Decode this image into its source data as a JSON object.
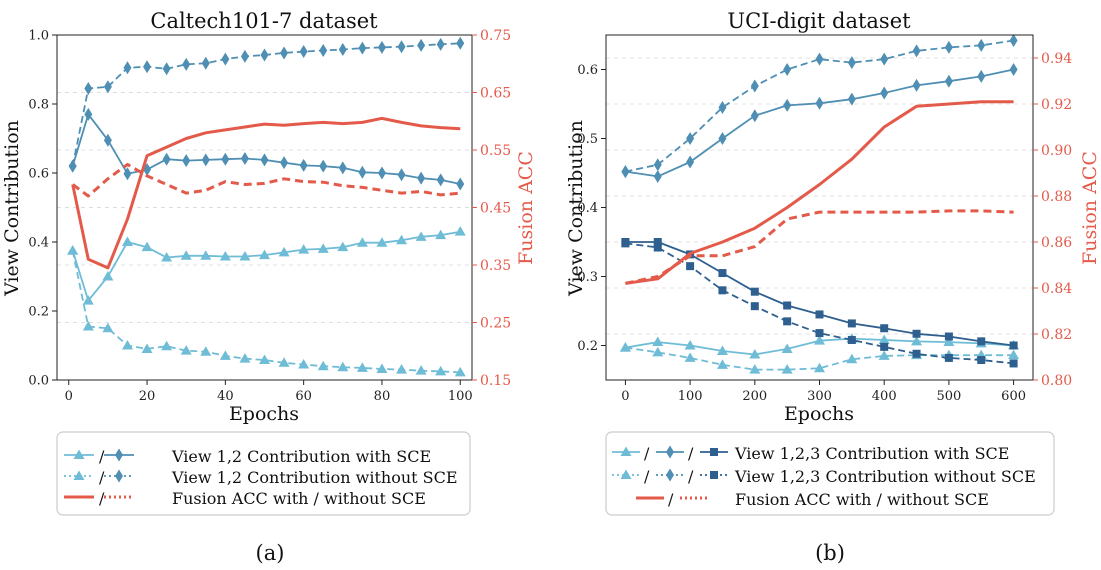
{
  "colors": {
    "light": "#6fbcd6",
    "mid": "#4f8fb3",
    "dark": "#2e5f8f",
    "red": "#e45a4a"
  },
  "chart_data": [
    {
      "type": "line",
      "title": "Caltech101-7 dataset",
      "xlabel": "Epochs",
      "ylabel": "View Contribution",
      "y2label": "Fusion ACC",
      "xlim": [
        -3,
        103
      ],
      "ylim": [
        0,
        1.0
      ],
      "y2lim": [
        0.15,
        0.75
      ],
      "xticks": [
        0,
        20,
        40,
        60,
        80,
        100
      ],
      "yticks": [
        0.0,
        0.2,
        0.4,
        0.6,
        0.8,
        1.0
      ],
      "y2ticks": [
        0.15,
        0.25,
        0.35,
        0.45,
        0.55,
        0.65,
        0.75
      ],
      "xtick_labels": [
        "0",
        "20",
        "40",
        "60",
        "80",
        "100"
      ],
      "ytick_labels": [
        "0.0",
        "0.2",
        "0.4",
        "0.6",
        "0.8",
        "1.0"
      ],
      "y2tick_labels": [
        "0.15",
        "0.25",
        "0.35",
        "0.45",
        "0.55",
        "0.65",
        "0.75"
      ],
      "grid": true,
      "x": [
        1,
        5,
        10,
        15,
        20,
        25,
        30,
        35,
        40,
        45,
        50,
        55,
        60,
        65,
        70,
        75,
        80,
        85,
        90,
        95,
        100
      ],
      "series": [
        {
          "style": "light-tri-solid",
          "axis": "left",
          "values": [
            0.375,
            0.23,
            0.3,
            0.4,
            0.385,
            0.355,
            0.36,
            0.36,
            0.358,
            0.358,
            0.362,
            0.37,
            0.378,
            0.38,
            0.385,
            0.398,
            0.398,
            0.405,
            0.415,
            0.42,
            0.43
          ]
        },
        {
          "style": "light-tri-dash",
          "axis": "left",
          "values": [
            0.375,
            0.155,
            0.15,
            0.1,
            0.09,
            0.098,
            0.085,
            0.082,
            0.07,
            0.062,
            0.058,
            0.05,
            0.045,
            0.04,
            0.037,
            0.035,
            0.032,
            0.03,
            0.027,
            0.025,
            0.022
          ]
        },
        {
          "style": "mid-dia-solid",
          "axis": "left",
          "values": [
            0.62,
            0.77,
            0.695,
            0.598,
            0.61,
            0.64,
            0.636,
            0.638,
            0.64,
            0.642,
            0.638,
            0.63,
            0.622,
            0.62,
            0.615,
            0.602,
            0.6,
            0.595,
            0.585,
            0.58,
            0.568
          ]
        },
        {
          "style": "mid-dia-dash",
          "axis": "left",
          "values": [
            0.62,
            0.845,
            0.85,
            0.905,
            0.908,
            0.902,
            0.915,
            0.918,
            0.93,
            0.938,
            0.942,
            0.948,
            0.952,
            0.955,
            0.958,
            0.962,
            0.964,
            0.966,
            0.97,
            0.973,
            0.976
          ]
        },
        {
          "style": "red-solid",
          "axis": "right",
          "values": [
            0.49,
            0.36,
            0.345,
            0.43,
            0.54,
            0.555,
            0.57,
            0.58,
            0.585,
            0.59,
            0.595,
            0.593,
            0.596,
            0.598,
            0.596,
            0.598,
            0.605,
            0.598,
            0.592,
            0.589,
            0.587
          ]
        },
        {
          "style": "red-dot",
          "axis": "right",
          "values": [
            0.49,
            0.47,
            0.5,
            0.525,
            0.505,
            0.49,
            0.475,
            0.48,
            0.495,
            0.49,
            0.492,
            0.5,
            0.495,
            0.494,
            0.488,
            0.485,
            0.48,
            0.475,
            0.478,
            0.472,
            0.475
          ]
        }
      ],
      "legend": {
        "placement": "bottom",
        "entries": [
          {
            "prefix": "/",
            "label": "View 1,2 Contribution with SCE",
            "style": "tri-dia-solid"
          },
          {
            "prefix": "/",
            "label": "View 1,2 Contribution without SCE",
            "style": "tri-dia-dotted"
          },
          {
            "prefix": "/",
            "label": "Fusion ACC with / without SCE",
            "style": "red-solid-dotted"
          }
        ]
      },
      "caption": "(a)"
    },
    {
      "type": "line",
      "title": "UCI-digit dataset",
      "xlabel": "Epochs",
      "ylabel": "View Contribution",
      "y2label": "Fusion ACC",
      "xlim": [
        -30,
        630
      ],
      "ylim": [
        0.15,
        0.65
      ],
      "y2lim": [
        0.8,
        0.95
      ],
      "xticks": [
        0,
        100,
        200,
        300,
        400,
        500,
        600
      ],
      "yticks": [
        0.2,
        0.3,
        0.4,
        0.5,
        0.6
      ],
      "y2ticks": [
        0.8,
        0.82,
        0.84,
        0.86,
        0.88,
        0.9,
        0.92,
        0.94
      ],
      "xtick_labels": [
        "0",
        "100",
        "200",
        "300",
        "400",
        "500",
        "600"
      ],
      "ytick_labels": [
        "0.2",
        "0.3",
        "0.4",
        "0.5",
        "0.6"
      ],
      "y2tick_labels": [
        "0.80",
        "0.82",
        "0.84",
        "0.86",
        "0.88",
        "0.90",
        "0.92",
        "0.94"
      ],
      "grid": true,
      "x": [
        0,
        50,
        100,
        150,
        200,
        250,
        300,
        350,
        400,
        450,
        500,
        550,
        600
      ],
      "series": [
        {
          "style": "light-tri-solid",
          "axis": "left",
          "values": [
            0.197,
            0.205,
            0.2,
            0.192,
            0.187,
            0.195,
            0.207,
            0.21,
            0.208,
            0.206,
            0.205,
            0.203,
            0.2
          ]
        },
        {
          "style": "light-tri-dash",
          "axis": "left",
          "values": [
            0.197,
            0.19,
            0.182,
            0.172,
            0.165,
            0.165,
            0.167,
            0.18,
            0.185,
            0.186,
            0.186,
            0.186,
            0.186
          ]
        },
        {
          "style": "mid-dia-solid",
          "axis": "left",
          "values": [
            0.452,
            0.445,
            0.466,
            0.5,
            0.533,
            0.548,
            0.551,
            0.557,
            0.566,
            0.577,
            0.583,
            0.59,
            0.6
          ]
        },
        {
          "style": "mid-dia-dash",
          "axis": "left",
          "values": [
            0.452,
            0.462,
            0.5,
            0.545,
            0.576,
            0.6,
            0.615,
            0.61,
            0.615,
            0.627,
            0.632,
            0.635,
            0.642
          ]
        },
        {
          "style": "dark-sq-solid",
          "axis": "left",
          "values": [
            0.35,
            0.35,
            0.332,
            0.305,
            0.278,
            0.258,
            0.245,
            0.232,
            0.225,
            0.217,
            0.213,
            0.206,
            0.2
          ]
        },
        {
          "style": "dark-sq-dash",
          "axis": "left",
          "values": [
            0.348,
            0.342,
            0.315,
            0.28,
            0.257,
            0.235,
            0.218,
            0.208,
            0.198,
            0.188,
            0.182,
            0.179,
            0.174
          ]
        },
        {
          "style": "red-solid",
          "axis": "right",
          "values": [
            0.842,
            0.844,
            0.855,
            0.86,
            0.866,
            0.875,
            0.885,
            0.896,
            0.91,
            0.919,
            0.92,
            0.921,
            0.921
          ]
        },
        {
          "style": "red-dot",
          "axis": "right",
          "values": [
            0.842,
            0.845,
            0.854,
            0.854,
            0.858,
            0.87,
            0.873,
            0.873,
            0.873,
            0.873,
            0.8735,
            0.8735,
            0.873
          ]
        }
      ],
      "legend": {
        "placement": "bottom",
        "entries": [
          {
            "prefix": "/ /",
            "label": "View 1,2,3 Contribution with SCE",
            "style": "tri-dia-sq-solid"
          },
          {
            "prefix": "/ /",
            "label": "View 1,2,3 Contribution without SCE",
            "style": "tri-dia-sq-dotted"
          },
          {
            "prefix": "/",
            "label": "Fusion ACC with / without SCE",
            "style": "red-solid-dotted"
          }
        ]
      },
      "caption": "(b)"
    }
  ]
}
